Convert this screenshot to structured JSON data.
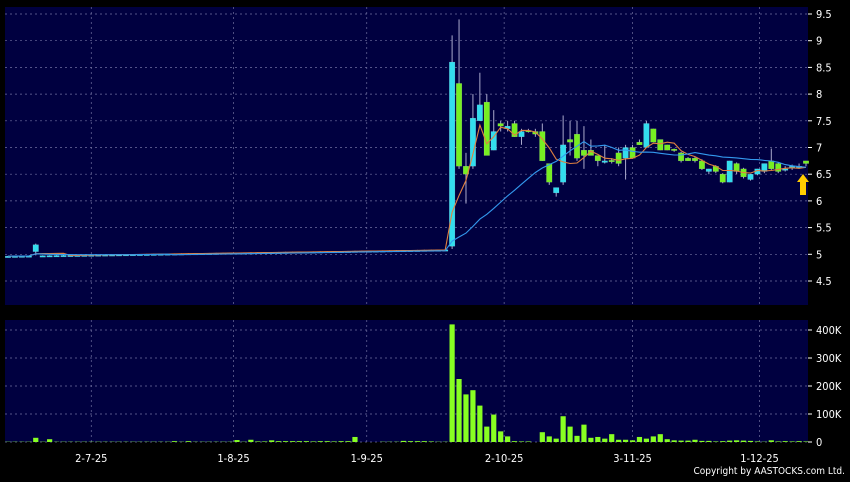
{
  "chart_data": {
    "type": "candlestick",
    "colors": {
      "background": "#000040",
      "up": "#33ddee",
      "down": "#77ee22",
      "ma_short": "#e08040",
      "ma_long": "#3399ee",
      "grid": "#6f6f9f",
      "volume": "#88ff22",
      "arrow": "#ffcc00"
    },
    "price_axis": {
      "ylim": [
        4.0,
        9.6
      ],
      "ticks": [
        "9.5",
        "9",
        "8.5",
        "8",
        "7.5",
        "7",
        "6.5",
        "6",
        "5.5",
        "5",
        "4.5"
      ]
    },
    "volume_axis": {
      "ylim": [
        0,
        440
      ],
      "ticks": [
        "400K",
        "300K",
        "200K",
        "100K",
        "0"
      ]
    },
    "x_tick_labels": [
      {
        "label": "2-7-25",
        "index": 12
      },
      {
        "label": "1-8-25",
        "index": 32.5
      },
      {
        "label": "1-9-25",
        "index": 51.7
      },
      {
        "label": "2-10-25",
        "index": 71.5
      },
      {
        "label": "3-11-25",
        "index": 90
      },
      {
        "label": "1-12-25",
        "index": 108.3
      }
    ],
    "moving_averages": [
      5,
      20
    ],
    "ohlc_pre": {
      "start": 4.96,
      "end": 5.08,
      "count": 64,
      "bump": {
        "index": 4,
        "o": 5.05,
        "h": 5.2,
        "l": 4.98,
        "c": 5.18
      }
    },
    "ohlc": [
      [
        5.15,
        9.1,
        5.1,
        8.6
      ],
      [
        8.2,
        9.4,
        6.6,
        6.65
      ],
      [
        6.65,
        6.9,
        5.95,
        6.5
      ],
      [
        6.65,
        8.0,
        6.6,
        7.55
      ],
      [
        7.5,
        8.4,
        7.5,
        7.8
      ],
      [
        7.85,
        8.0,
        6.85,
        6.85
      ],
      [
        6.95,
        7.7,
        6.95,
        7.3
      ],
      [
        7.45,
        7.5,
        7.3,
        7.4
      ],
      [
        7.35,
        7.5,
        7.3,
        7.4
      ],
      [
        7.45,
        7.5,
        7.2,
        7.2
      ],
      [
        7.2,
        7.35,
        7.05,
        7.3
      ],
      [
        7.32,
        7.35,
        7.28,
        7.3
      ],
      [
        7.3,
        7.35,
        7.2,
        7.25
      ],
      [
        7.3,
        7.45,
        6.75,
        6.75
      ],
      [
        6.7,
        6.7,
        6.3,
        6.35
      ],
      [
        6.15,
        6.25,
        6.08,
        6.25
      ],
      [
        6.35,
        7.6,
        6.3,
        7.05
      ],
      [
        7.15,
        7.5,
        6.85,
        7.1
      ],
      [
        7.25,
        7.5,
        6.75,
        6.8
      ],
      [
        6.95,
        7.4,
        6.6,
        6.85
      ],
      [
        6.95,
        7.15,
        6.85,
        6.85
      ],
      [
        6.85,
        6.85,
        6.65,
        6.75
      ],
      [
        6.72,
        7.05,
        6.7,
        6.75
      ],
      [
        6.76,
        6.8,
        6.7,
        6.74
      ],
      [
        6.9,
        7.0,
        6.65,
        6.7
      ],
      [
        6.8,
        7.05,
        6.4,
        7.0
      ],
      [
        7.0,
        7.05,
        6.8,
        6.8
      ],
      [
        7.1,
        7.15,
        7.05,
        7.05
      ],
      [
        7.0,
        7.5,
        7.0,
        7.45
      ],
      [
        7.35,
        7.35,
        7.1,
        7.1
      ],
      [
        7.15,
        7.15,
        6.95,
        6.95
      ],
      [
        7.05,
        7.05,
        6.95,
        6.95
      ],
      [
        6.97,
        6.98,
        6.92,
        6.95
      ],
      [
        6.9,
        6.92,
        6.72,
        6.75
      ],
      [
        6.8,
        6.82,
        6.75,
        6.75
      ],
      [
        6.8,
        6.82,
        6.72,
        6.75
      ],
      [
        6.75,
        6.78,
        6.58,
        6.6
      ],
      [
        6.55,
        6.6,
        6.5,
        6.6
      ],
      [
        6.65,
        6.67,
        6.52,
        6.55
      ],
      [
        6.5,
        6.52,
        6.33,
        6.35
      ],
      [
        6.35,
        6.75,
        6.35,
        6.75
      ],
      [
        6.7,
        6.72,
        6.5,
        6.55
      ],
      [
        6.6,
        6.62,
        6.42,
        6.45
      ],
      [
        6.4,
        6.5,
        6.38,
        6.5
      ],
      [
        6.5,
        6.6,
        6.48,
        6.6
      ],
      [
        6.55,
        6.7,
        6.52,
        6.7
      ],
      [
        6.75,
        6.98,
        6.58,
        6.6
      ],
      [
        6.7,
        6.72,
        6.52,
        6.55
      ],
      [
        6.6,
        6.65,
        6.55,
        6.6
      ],
      [
        6.62,
        6.68,
        6.58,
        6.65
      ],
      [
        6.65,
        6.7,
        6.6,
        6.65
      ],
      [
        6.75,
        6.75,
        6.65,
        6.7
      ]
    ],
    "volume_pre": [
      1,
      1,
      1,
      1,
      15,
      1,
      10,
      1,
      1,
      1,
      1,
      1,
      1,
      1,
      1,
      1,
      1,
      1,
      1,
      1,
      1,
      1,
      1,
      1,
      3,
      1,
      3,
      1,
      1,
      1,
      1,
      1,
      1,
      7,
      1,
      8,
      2,
      2,
      6,
      3,
      3,
      3,
      3,
      3,
      2,
      3,
      3,
      2,
      3,
      3,
      18,
      0,
      0,
      0,
      1,
      1,
      1,
      4,
      3,
      3,
      3,
      2,
      1,
      1
    ],
    "volume": [
      420,
      225,
      170,
      185,
      130,
      55,
      98,
      38,
      20,
      3,
      2,
      2,
      0,
      35,
      20,
      12,
      92,
      55,
      22,
      62,
      15,
      18,
      12,
      28,
      8,
      8,
      6,
      18,
      12,
      20,
      28,
      10,
      6,
      5,
      5,
      8,
      4,
      4,
      2,
      3,
      5,
      6,
      5,
      4,
      2,
      1,
      6,
      2,
      3,
      2,
      3,
      2
    ],
    "copyright": "Copyright by AASTOCKS.com Ltd."
  }
}
